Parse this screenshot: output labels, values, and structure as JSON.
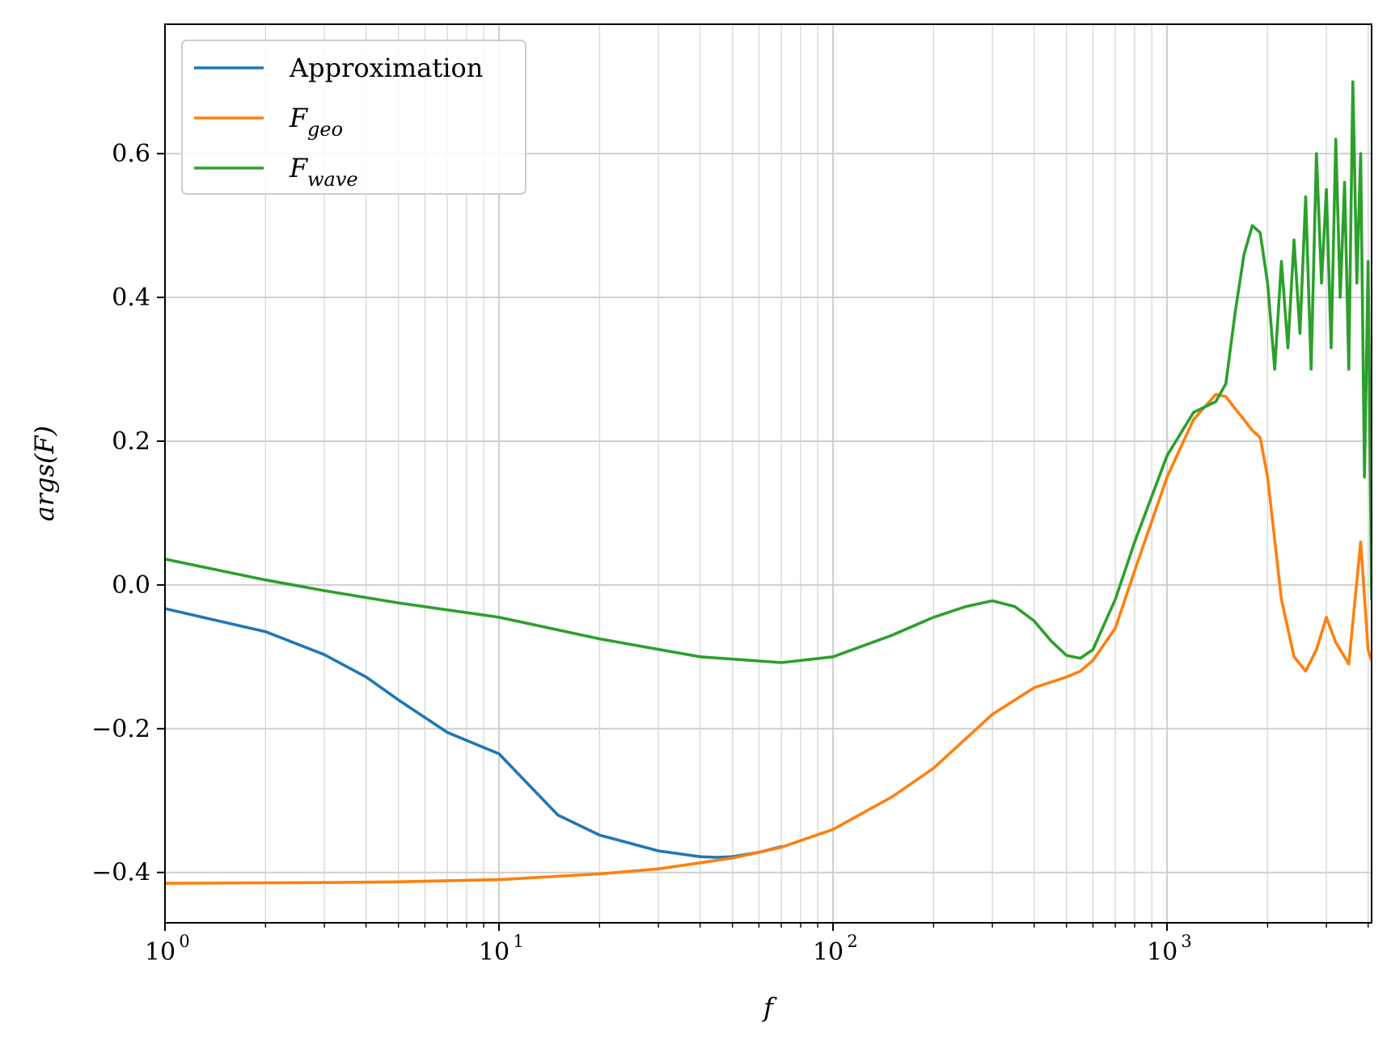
{
  "chart_data": {
    "type": "line",
    "title": "",
    "xlabel": "f",
    "ylabel": "args(F)",
    "xscale": "log",
    "xlim": [
      1,
      4096
    ],
    "ylim": [
      -0.47,
      0.78
    ],
    "grid": {
      "major": true,
      "minor": true
    },
    "legend_position": "top-left",
    "xticks": [
      {
        "value": 1,
        "base": "10",
        "exp": "0"
      },
      {
        "value": 10,
        "base": "10",
        "exp": "1"
      },
      {
        "value": 100,
        "base": "10",
        "exp": "2"
      },
      {
        "value": 1000,
        "base": "10",
        "exp": "3"
      }
    ],
    "yticks": [
      {
        "value": -0.4,
        "label": "−0.4"
      },
      {
        "value": -0.2,
        "label": "−0.2"
      },
      {
        "value": 0.0,
        "label": "0.0"
      },
      {
        "value": 0.2,
        "label": "0.2"
      },
      {
        "value": 0.4,
        "label": "0.4"
      },
      {
        "value": 0.6,
        "label": "0.6"
      }
    ],
    "series": [
      {
        "name": "Approximation",
        "name_main": "Approximation",
        "name_sub": "",
        "color": "#1f77b4",
        "x": [
          1,
          2,
          3,
          4,
          5,
          7,
          10,
          15,
          20,
          30,
          40,
          45,
          50,
          60,
          70
        ],
        "y": [
          -0.033,
          -0.065,
          -0.097,
          -0.128,
          -0.16,
          -0.205,
          -0.235,
          -0.32,
          -0.348,
          -0.37,
          -0.378,
          -0.379,
          -0.378,
          -0.372,
          -0.364
        ]
      },
      {
        "name": "Fgeo",
        "name_main": "F",
        "name_sub": "geo",
        "color": "#ff7f0e",
        "x": [
          1,
          3,
          5,
          10,
          20,
          30,
          50,
          70,
          100,
          150,
          200,
          300,
          400,
          500,
          550,
          600,
          700,
          800,
          1000,
          1200,
          1400,
          1500,
          1600,
          1700,
          1800,
          1900,
          2000,
          2200,
          2400,
          2600,
          2800,
          3000,
          3200,
          3500,
          3800,
          4000,
          4096
        ],
        "y": [
          -0.415,
          -0.414,
          -0.413,
          -0.41,
          -0.402,
          -0.395,
          -0.38,
          -0.365,
          -0.34,
          -0.295,
          -0.255,
          -0.18,
          -0.143,
          -0.128,
          -0.12,
          -0.105,
          -0.06,
          0.02,
          0.15,
          0.23,
          0.265,
          0.262,
          0.245,
          0.23,
          0.215,
          0.205,
          0.15,
          -0.02,
          -0.1,
          -0.12,
          -0.09,
          -0.045,
          -0.08,
          -0.11,
          0.06,
          -0.09,
          -0.105
        ]
      },
      {
        "name": "Fwave",
        "name_main": "F",
        "name_sub": "wave",
        "color": "#2ca02c",
        "x": [
          1,
          2,
          3,
          5,
          10,
          20,
          40,
          70,
          100,
          150,
          200,
          250,
          300,
          350,
          400,
          450,
          500,
          550,
          600,
          700,
          800,
          1000,
          1200,
          1400,
          1500,
          1600,
          1700,
          1800,
          1900,
          2000,
          2100,
          2200,
          2300,
          2400,
          2500,
          2600,
          2700,
          2800,
          2900,
          3000,
          3100,
          3200,
          3300,
          3400,
          3500,
          3600,
          3700,
          3800,
          3900,
          4000,
          4096
        ],
        "y": [
          0.036,
          0.007,
          -0.008,
          -0.025,
          -0.045,
          -0.075,
          -0.1,
          -0.108,
          -0.1,
          -0.07,
          -0.045,
          -0.03,
          -0.022,
          -0.03,
          -0.05,
          -0.078,
          -0.098,
          -0.102,
          -0.09,
          -0.02,
          0.06,
          0.18,
          0.24,
          0.255,
          0.28,
          0.38,
          0.46,
          0.5,
          0.49,
          0.42,
          0.3,
          0.45,
          0.33,
          0.48,
          0.35,
          0.54,
          0.3,
          0.6,
          0.42,
          0.55,
          0.33,
          0.62,
          0.4,
          0.56,
          0.3,
          0.7,
          0.42,
          0.6,
          0.15,
          0.45,
          -0.02
        ]
      }
    ]
  }
}
